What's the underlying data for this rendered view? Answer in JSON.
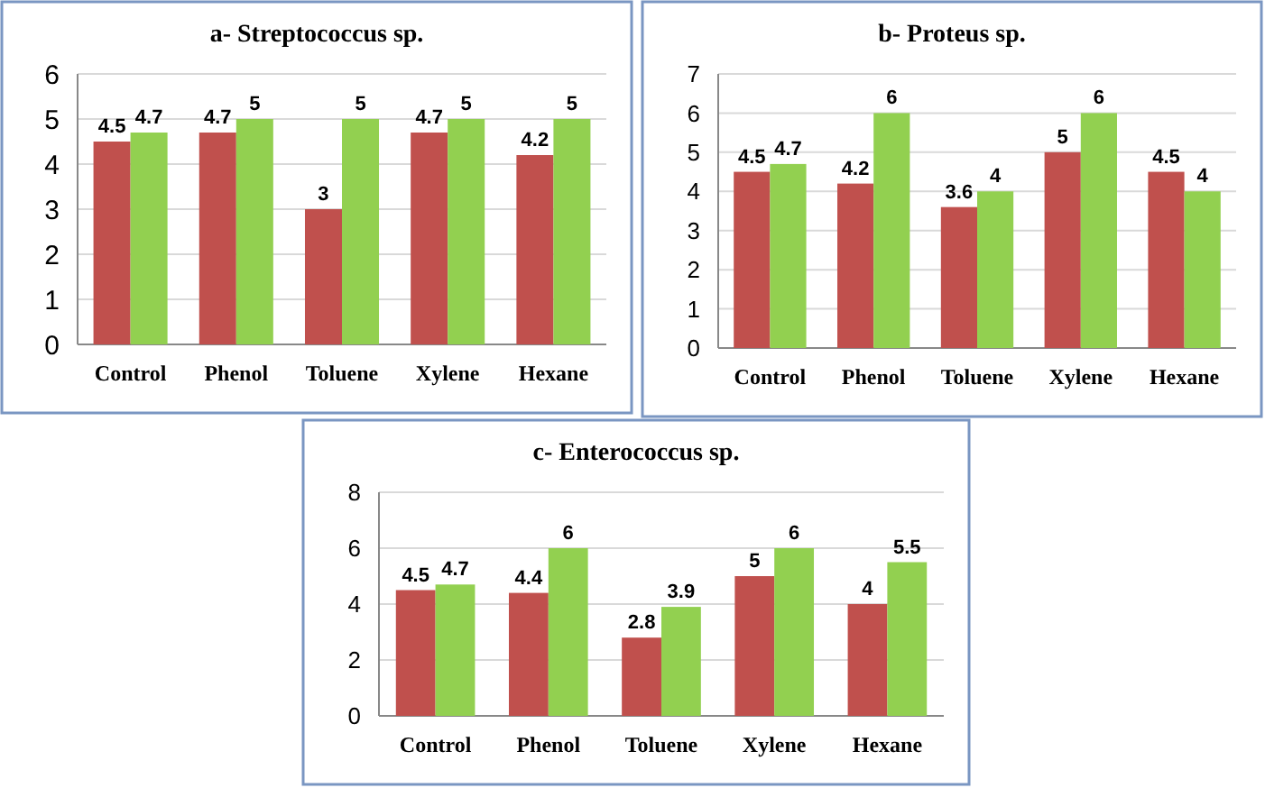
{
  "chart_data": [
    {
      "type": "bar",
      "title": "a- Streptococcus sp.",
      "categories": [
        "Control",
        "Phenol",
        "Toluene",
        "Xylene",
        "Hexane"
      ],
      "series": [
        {
          "color": "#c0504d",
          "values": [
            4.5,
            4.7,
            3,
            4.7,
            4.2
          ]
        },
        {
          "color": "#92d050",
          "values": [
            4.7,
            5,
            5,
            5,
            5
          ]
        }
      ],
      "ylim": [
        0,
        6
      ],
      "yticks": [
        0,
        1,
        2,
        3,
        4,
        5,
        6
      ],
      "grid": "y",
      "data_labels": true
    },
    {
      "type": "bar",
      "title": "b- Proteus sp.",
      "categories": [
        "Control",
        "Phenol",
        "Toluene",
        "Xylene",
        "Hexane"
      ],
      "series": [
        {
          "color": "#c0504d",
          "values": [
            4.5,
            4.2,
            3.6,
            5,
            4.5
          ]
        },
        {
          "color": "#92d050",
          "values": [
            4.7,
            6,
            4,
            6,
            4
          ]
        }
      ],
      "ylim": [
        0,
        7
      ],
      "yticks": [
        0,
        1,
        2,
        3,
        4,
        5,
        6,
        7
      ],
      "grid": "y",
      "data_labels": true
    },
    {
      "type": "bar",
      "title": "c- Enterococcus sp.",
      "categories": [
        "Control",
        "Phenol",
        "Toluene",
        "Xylene",
        "Hexane"
      ],
      "series": [
        {
          "color": "#c0504d",
          "values": [
            4.5,
            4.4,
            2.8,
            5,
            4
          ]
        },
        {
          "color": "#92d050",
          "values": [
            4.7,
            6,
            3.9,
            6,
            5.5
          ]
        }
      ],
      "ylim": [
        0,
        8
      ],
      "yticks": [
        0,
        2,
        4,
        6,
        8
      ],
      "grid": "y",
      "data_labels": true
    }
  ]
}
